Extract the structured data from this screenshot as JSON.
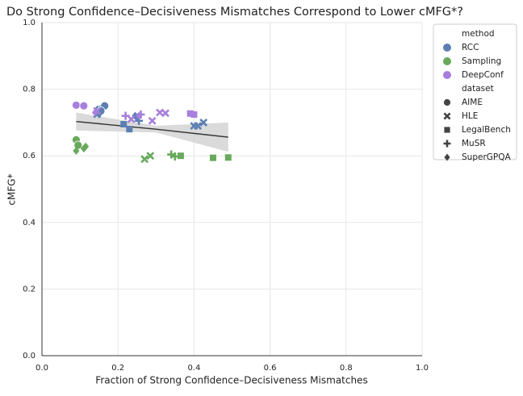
{
  "chart_data": {
    "type": "scatter",
    "title": "Do Strong Confidence–Decisiveness Mismatches Correspond to Lower cMFG*?",
    "x_label": "Fraction of Strong Confidence–Decisiveness Mismatches",
    "y_label": "cMFG*",
    "xlim": [
      0,
      1
    ],
    "ylim": [
      0,
      1
    ],
    "xticks": [
      {
        "value": 0,
        "label": "0.0"
      },
      0.2,
      0.4,
      0.6,
      0.8,
      {
        "value": 1,
        "label": "1.0"
      }
    ],
    "yticks": [
      {
        "value": 0,
        "label": "0.0"
      },
      0.2,
      0.4,
      0.6,
      0.8,
      {
        "value": 1,
        "label": "1.0"
      }
    ],
    "grid": true,
    "legend_position": "outside-right",
    "method_title": "method",
    "dataset_title": "dataset",
    "datasets": [
      {
        "name": "AIME",
        "marker": "circle"
      },
      {
        "name": "HLE",
        "marker": "x"
      },
      {
        "name": "LegalBench",
        "marker": "square"
      },
      {
        "name": "MuSR",
        "marker": "plus"
      },
      {
        "name": "SuperGPQA",
        "marker": "diamond"
      }
    ],
    "series": [
      {
        "name": "RCC",
        "color": "#5b7fb3",
        "x": [
          0.15,
          0.16,
          0.165,
          0.155,
          0.4,
          0.41,
          0.425,
          0.145,
          0.215,
          0.23,
          0.255,
          0.25,
          0.15,
          0.245
        ],
        "values": [
          0.74,
          0.745,
          0.75,
          0.735,
          0.69,
          0.69,
          0.7,
          0.725,
          0.695,
          0.68,
          0.705,
          0.715,
          0.725,
          0.72
        ],
        "dataset": [
          "AIME",
          "AIME",
          "AIME",
          "AIME",
          "HLE",
          "HLE",
          "HLE",
          "HLE",
          "LegalBench",
          "LegalBench",
          "MuSR",
          "MuSR",
          "SuperGPQA",
          "SuperGPQA"
        ]
      },
      {
        "name": "Sampling",
        "color": "#68a95c",
        "x": [
          0.09,
          0.095,
          0.09,
          0.115,
          0.11,
          0.27,
          0.285,
          0.365,
          0.45,
          0.49,
          0.34,
          0.35
        ],
        "values": [
          0.648,
          0.632,
          0.615,
          0.628,
          0.622,
          0.59,
          0.6,
          0.6,
          0.594,
          0.595,
          0.604,
          0.598
        ],
        "dataset": [
          "AIME",
          "AIME",
          "SuperGPQA",
          "SuperGPQA",
          "SuperGPQA",
          "HLE",
          "HLE",
          "LegalBench",
          "LegalBench",
          "LegalBench",
          "MuSR",
          "MuSR"
        ]
      },
      {
        "name": "DeepConf",
        "color": "#a77fdc",
        "x": [
          0.09,
          0.11,
          0.235,
          0.31,
          0.325,
          0.29,
          0.145,
          0.39,
          0.4,
          0.22,
          0.26,
          0.14,
          0.255
        ],
        "values": [
          0.752,
          0.75,
          0.71,
          0.73,
          0.728,
          0.705,
          0.735,
          0.727,
          0.724,
          0.72,
          0.724,
          0.73,
          0.72
        ],
        "dataset": [
          "AIME",
          "AIME",
          "HLE",
          "HLE",
          "HLE",
          "HLE",
          "HLE",
          "LegalBench",
          "LegalBench",
          "MuSR",
          "MuSR",
          "SuperGPQA",
          "SuperGPQA"
        ]
      }
    ],
    "trend": {
      "color": "#333333",
      "band_color": "#d3d3d3",
      "x": [
        0.09,
        0.3,
        0.49
      ],
      "values": [
        0.703,
        0.68,
        0.656
      ],
      "ci_upper": [
        0.73,
        0.69,
        0.7
      ],
      "ci_lower": [
        0.676,
        0.67,
        0.612
      ]
    }
  }
}
